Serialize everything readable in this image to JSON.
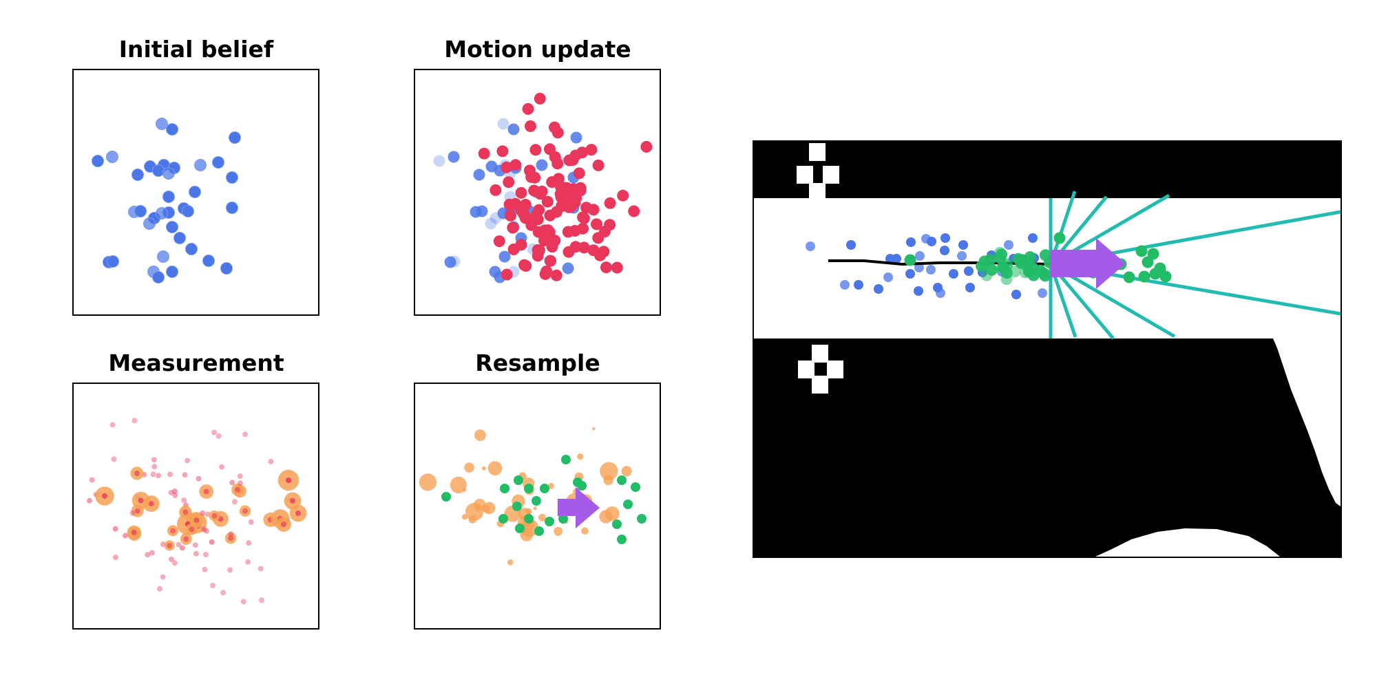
{
  "panels": {
    "initial": {
      "title": "Initial belief"
    },
    "motion": {
      "title": "Motion update"
    },
    "measurement": {
      "title": "Measurement"
    },
    "resample": {
      "title": "Resample"
    }
  },
  "colors": {
    "prior_particle": "#4a76e8",
    "moved_particle": "#e8375a",
    "weight_halo": "#f7a155",
    "weighted_particle": "#e8375a",
    "resampled_particle": "#22bb66",
    "robot_arrow": "#a45be8",
    "laser_beam": "#22bbb0",
    "trajectory": "#000000",
    "obstacle": "#000000"
  },
  "icons": {
    "robot": "robot-pose-arrow-icon"
  }
}
